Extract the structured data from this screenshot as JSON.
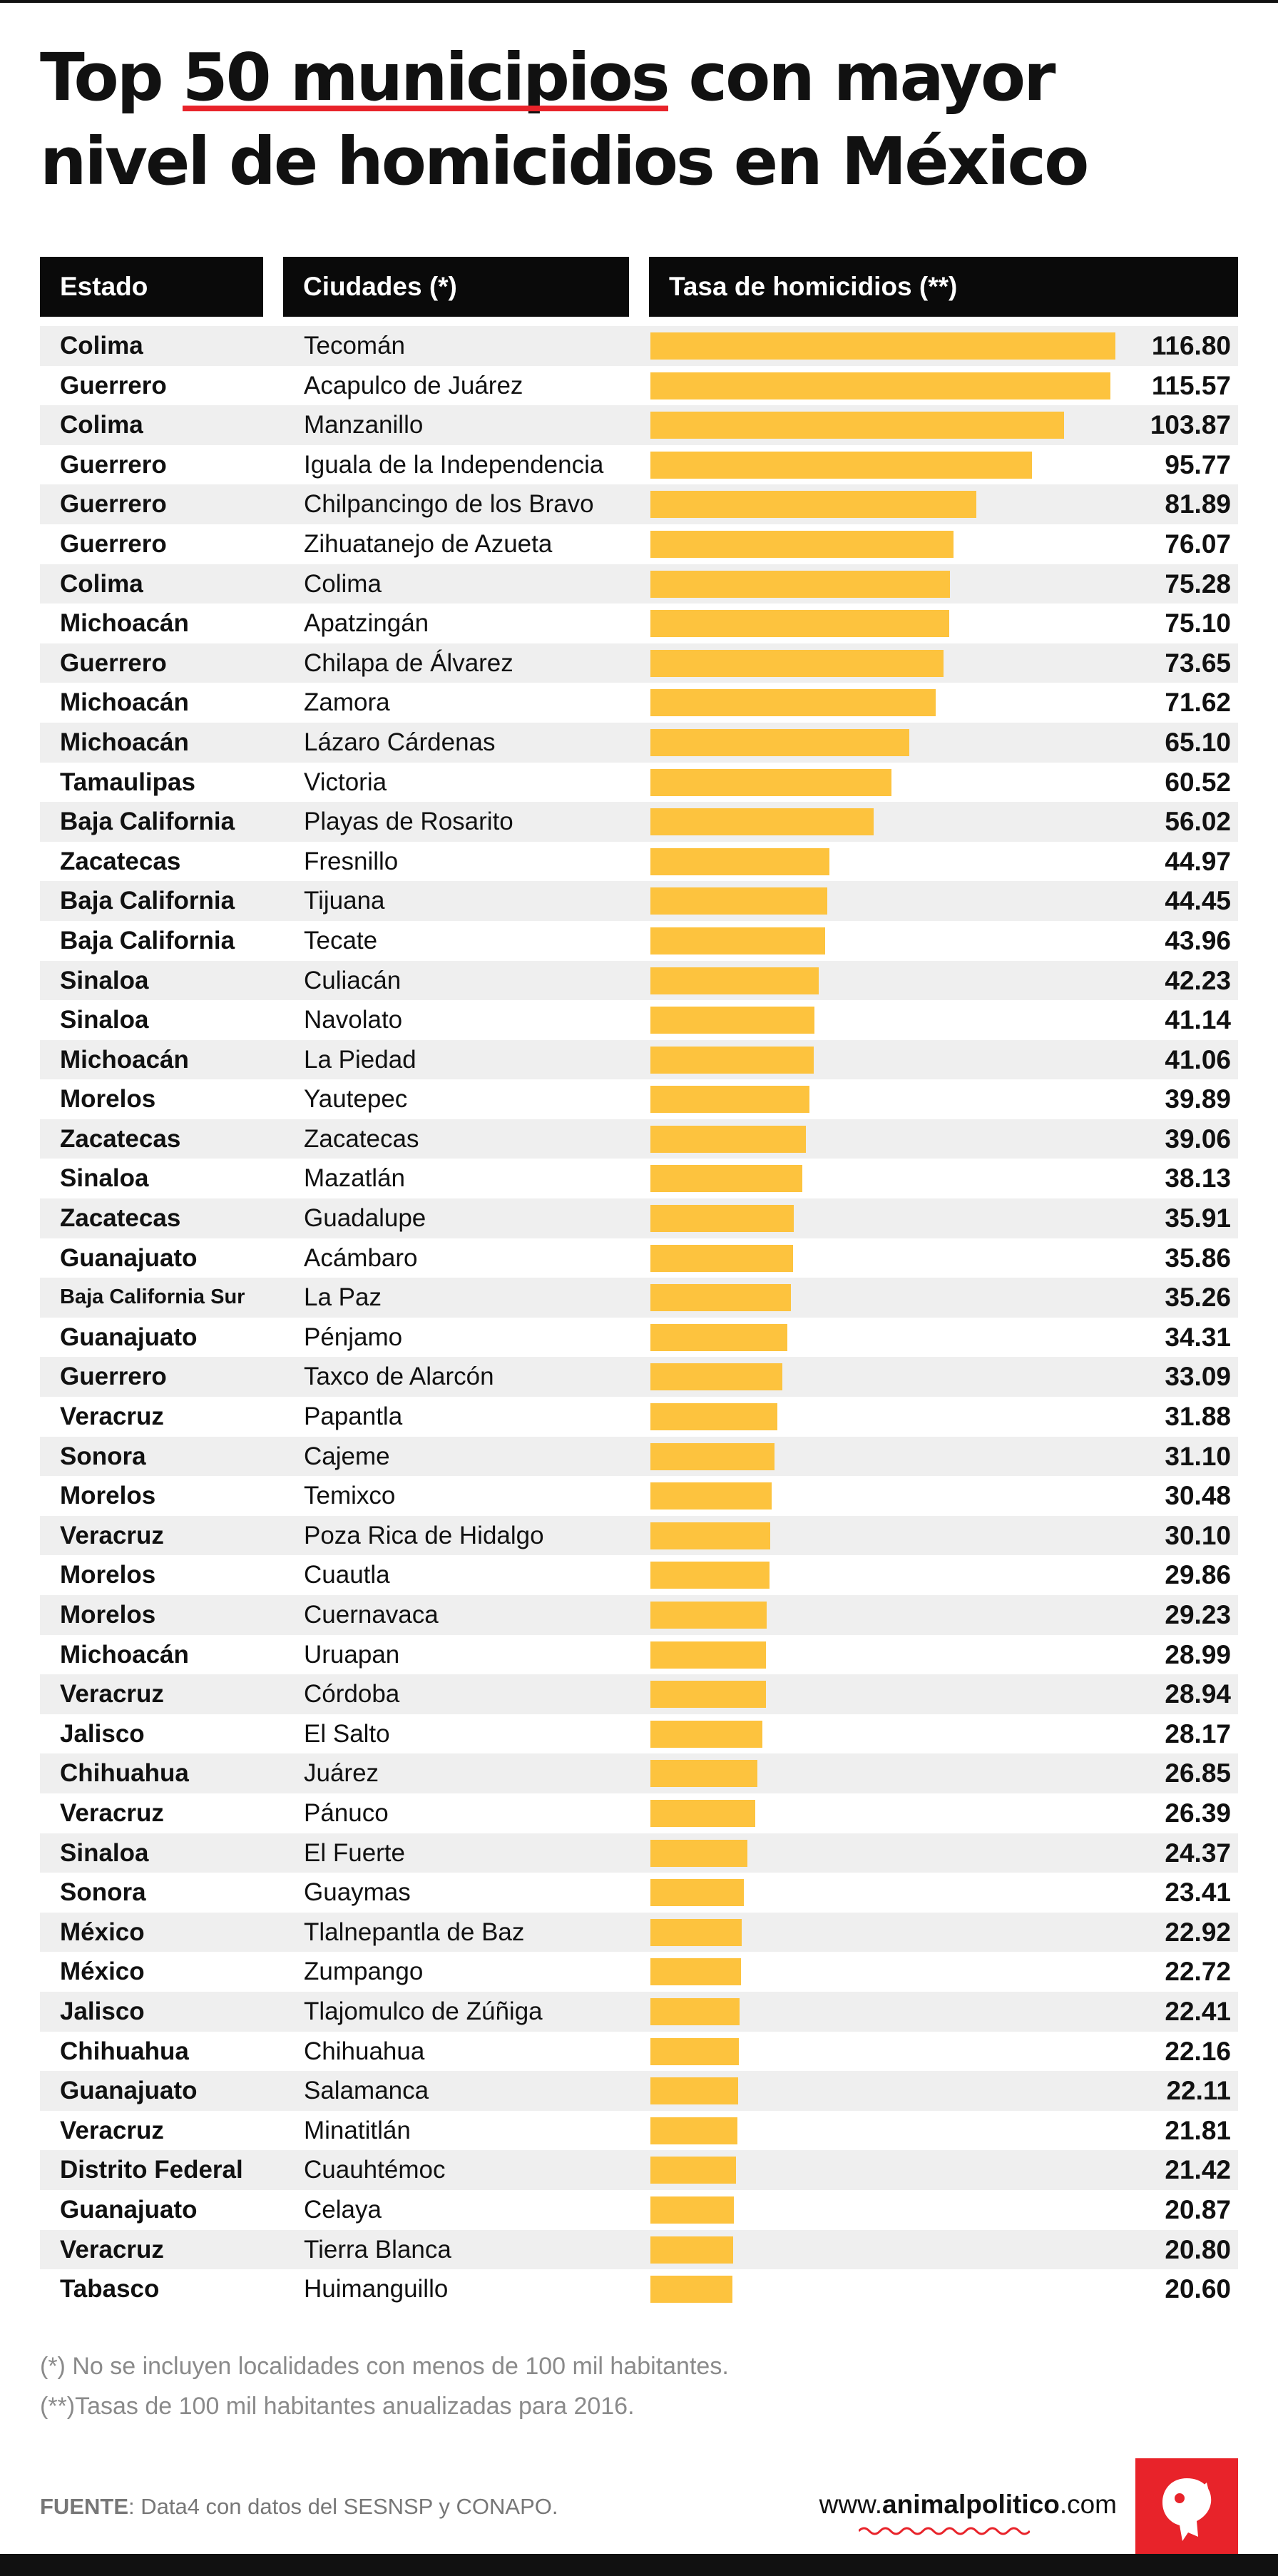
{
  "title": {
    "part1": "Top ",
    "highlight": "50 municipios",
    "part2": " con mayor",
    "line2": "nivel de homicidios en México"
  },
  "headers": {
    "estado": "Estado",
    "ciudades": "Ciudades (*)",
    "tasa": "Tasa de homicidios (**)"
  },
  "colors": {
    "bar": "#fdc33e",
    "accent": "#e8232a",
    "header_bg": "#0a0a0a",
    "row_shade": "#efefef"
  },
  "chart_data": {
    "type": "bar",
    "orientation": "horizontal",
    "xlim": [
      0,
      116.8
    ],
    "rows": [
      {
        "estado": "Colima",
        "ciudad": "Tecomán",
        "value": 116.8,
        "label": "116.80"
      },
      {
        "estado": "Guerrero",
        "ciudad": "Acapulco de Juárez",
        "value": 115.57,
        "label": "115.57"
      },
      {
        "estado": "Colima",
        "ciudad": "Manzanillo",
        "value": 103.87,
        "label": "103.87"
      },
      {
        "estado": "Guerrero",
        "ciudad": "Iguala de la Independencia",
        "value": 95.77,
        "label": "95.77"
      },
      {
        "estado": "Guerrero",
        "ciudad": "Chilpancingo de los Bravo",
        "value": 81.89,
        "label": "81.89"
      },
      {
        "estado": "Guerrero",
        "ciudad": "Zihuatanejo de Azueta",
        "value": 76.07,
        "label": "76.07"
      },
      {
        "estado": "Colima",
        "ciudad": "Colima",
        "value": 75.28,
        "label": "75.28"
      },
      {
        "estado": "Michoacán",
        "ciudad": "Apatzingán",
        "value": 75.1,
        "label": "75.10"
      },
      {
        "estado": "Guerrero",
        "ciudad": "Chilapa de Álvarez",
        "value": 73.65,
        "label": "73.65"
      },
      {
        "estado": "Michoacán",
        "ciudad": "Zamora",
        "value": 71.62,
        "label": "71.62"
      },
      {
        "estado": "Michoacán",
        "ciudad": "Lázaro Cárdenas",
        "value": 65.1,
        "label": "65.10"
      },
      {
        "estado": "Tamaulipas",
        "ciudad": "Victoria",
        "value": 60.52,
        "label": "60.52"
      },
      {
        "estado": "Baja California",
        "ciudad": "Playas de Rosarito",
        "value": 56.02,
        "label": "56.02"
      },
      {
        "estado": "Zacatecas",
        "ciudad": "Fresnillo",
        "value": 44.97,
        "label": "44.97"
      },
      {
        "estado": "Baja California",
        "ciudad": "Tijuana",
        "value": 44.45,
        "label": "44.45"
      },
      {
        "estado": "Baja California",
        "ciudad": "Tecate",
        "value": 43.96,
        "label": "43.96"
      },
      {
        "estado": "Sinaloa",
        "ciudad": "Culiacán",
        "value": 42.23,
        "label": "42.23"
      },
      {
        "estado": "Sinaloa",
        "ciudad": "Navolato",
        "value": 41.14,
        "label": "41.14"
      },
      {
        "estado": "Michoacán",
        "ciudad": "La Piedad",
        "value": 41.06,
        "label": "41.06"
      },
      {
        "estado": "Morelos",
        "ciudad": "Yautepec",
        "value": 39.89,
        "label": "39.89"
      },
      {
        "estado": "Zacatecas",
        "ciudad": "Zacatecas",
        "value": 39.06,
        "label": "39.06"
      },
      {
        "estado": "Sinaloa",
        "ciudad": "Mazatlán",
        "value": 38.13,
        "label": "38.13"
      },
      {
        "estado": "Zacatecas",
        "ciudad": "Guadalupe",
        "value": 35.91,
        "label": "35.91"
      },
      {
        "estado": "Guanajuato",
        "ciudad": "Acámbaro",
        "value": 35.86,
        "label": "35.86"
      },
      {
        "estado": "Baja California Sur",
        "ciudad": "La Paz",
        "value": 35.26,
        "label": "35.26"
      },
      {
        "estado": "Guanajuato",
        "ciudad": "Pénjamo",
        "value": 34.31,
        "label": "34.31"
      },
      {
        "estado": "Guerrero",
        "ciudad": "Taxco de Alarcón",
        "value": 33.09,
        "label": "33.09"
      },
      {
        "estado": "Veracruz",
        "ciudad": "Papantla",
        "value": 31.88,
        "label": "31.88"
      },
      {
        "estado": "Sonora",
        "ciudad": "Cajeme",
        "value": 31.1,
        "label": "31.10"
      },
      {
        "estado": "Morelos",
        "ciudad": "Temixco",
        "value": 30.48,
        "label": "30.48"
      },
      {
        "estado": "Veracruz",
        "ciudad": "Poza Rica de Hidalgo",
        "value": 30.1,
        "label": "30.10"
      },
      {
        "estado": "Morelos",
        "ciudad": "Cuautla",
        "value": 29.86,
        "label": "29.86"
      },
      {
        "estado": "Morelos",
        "ciudad": "Cuernavaca",
        "value": 29.23,
        "label": "29.23"
      },
      {
        "estado": "Michoacán",
        "ciudad": "Uruapan",
        "value": 28.99,
        "label": "28.99"
      },
      {
        "estado": "Veracruz",
        "ciudad": "Córdoba",
        "value": 28.94,
        "label": "28.94"
      },
      {
        "estado": "Jalisco",
        "ciudad": "El Salto",
        "value": 28.17,
        "label": "28.17"
      },
      {
        "estado": "Chihuahua",
        "ciudad": "Juárez",
        "value": 26.85,
        "label": "26.85"
      },
      {
        "estado": "Veracruz",
        "ciudad": "Pánuco",
        "value": 26.39,
        "label": "26.39"
      },
      {
        "estado": "Sinaloa",
        "ciudad": "El Fuerte",
        "value": 24.37,
        "label": "24.37"
      },
      {
        "estado": "Sonora",
        "ciudad": "Guaymas",
        "value": 23.41,
        "label": "23.41"
      },
      {
        "estado": "México",
        "ciudad": "Tlalnepantla de Baz",
        "value": 22.92,
        "label": "22.92"
      },
      {
        "estado": "México",
        "ciudad": "Zumpango",
        "value": 22.72,
        "label": "22.72"
      },
      {
        "estado": "Jalisco",
        "ciudad": "Tlajomulco de Zúñiga",
        "value": 22.41,
        "label": "22.41"
      },
      {
        "estado": "Chihuahua",
        "ciudad": "Chihuahua",
        "value": 22.16,
        "label": "22.16"
      },
      {
        "estado": "Guanajuato",
        "ciudad": "Salamanca",
        "value": 22.11,
        "label": "22.11"
      },
      {
        "estado": "Veracruz",
        "ciudad": "Minatitlán",
        "value": 21.81,
        "label": "21.81"
      },
      {
        "estado": "Distrito Federal",
        "ciudad": "Cuauhtémoc",
        "value": 21.42,
        "label": "21.42"
      },
      {
        "estado": "Guanajuato",
        "ciudad": "Celaya",
        "value": 20.87,
        "label": "20.87"
      },
      {
        "estado": "Veracruz",
        "ciudad": "Tierra Blanca",
        "value": 20.8,
        "label": "20.80"
      },
      {
        "estado": "Tabasco",
        "ciudad": "Huimanguillo",
        "value": 20.6,
        "label": "20.60"
      }
    ]
  },
  "notes": {
    "note1": "(*) No se incluyen localidades con menos de 100 mil habitantes.",
    "note2": "(**)Tasas de 100 mil habitantes anualizadas para 2016."
  },
  "footer": {
    "source_label": "FUENTE",
    "source_text": ": Data4 con datos del SESNSP y CONAPO.",
    "site_prefix": "www.",
    "site_brand": "animalpolitico",
    "site_suffix": ".com",
    "logo_icon": "animal-politico-logo-icon"
  }
}
